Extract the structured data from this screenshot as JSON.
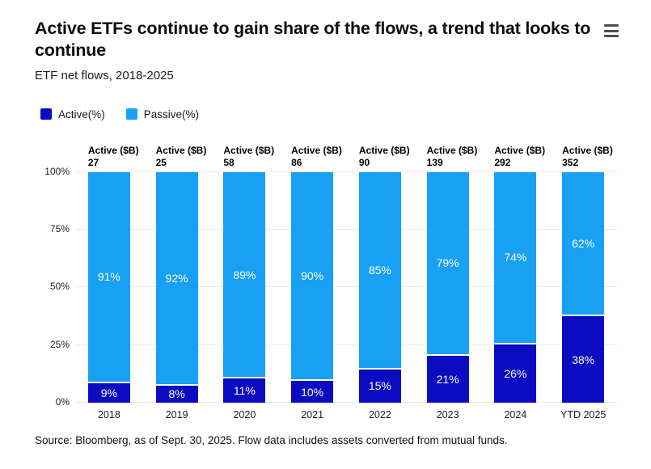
{
  "header": {
    "title": "Active ETFs continue to gain share of the flows, a trend that looks to continue",
    "subtitle": "ETF net flows, 2018-2025"
  },
  "menu": {
    "icon": "hamburger"
  },
  "legend": [
    {
      "label": "Active(%)",
      "color": "#0b0bc2"
    },
    {
      "label": "Passive(%)",
      "color": "#18a0f2"
    }
  ],
  "chart_data": {
    "type": "bar",
    "variant": "stacked-100-percent",
    "title": "Active ETFs continue to gain share of the flows, a trend that looks to continue",
    "subtitle": "ETF net flows, 2018-2025",
    "categories": [
      "2018",
      "2019",
      "2020",
      "2021",
      "2022",
      "2023",
      "2024",
      "YTD 2025"
    ],
    "series": [
      {
        "name": "Active(%)",
        "color": "#0b0bc2",
        "values": [
          9,
          8,
          11,
          10,
          15,
          21,
          26,
          38
        ]
      },
      {
        "name": "Passive(%)",
        "color": "#18a0f2",
        "values": [
          91,
          92,
          89,
          90,
          85,
          79,
          74,
          62
        ]
      }
    ],
    "bar_top_label_title": "Active ($B)",
    "bar_top_label_values": [
      27,
      25,
      58,
      86,
      90,
      139,
      292,
      352
    ],
    "value_label_suffix": "%",
    "y_ticks": [
      "0%",
      "25%",
      "50%",
      "75%",
      "100%"
    ],
    "ylim": [
      0,
      100
    ],
    "grid": true,
    "legend_position": "top-left"
  },
  "footer": {
    "source": "Source: Bloomberg, as of Sept. 30, 2025. Flow data includes assets converted from mutual funds."
  }
}
